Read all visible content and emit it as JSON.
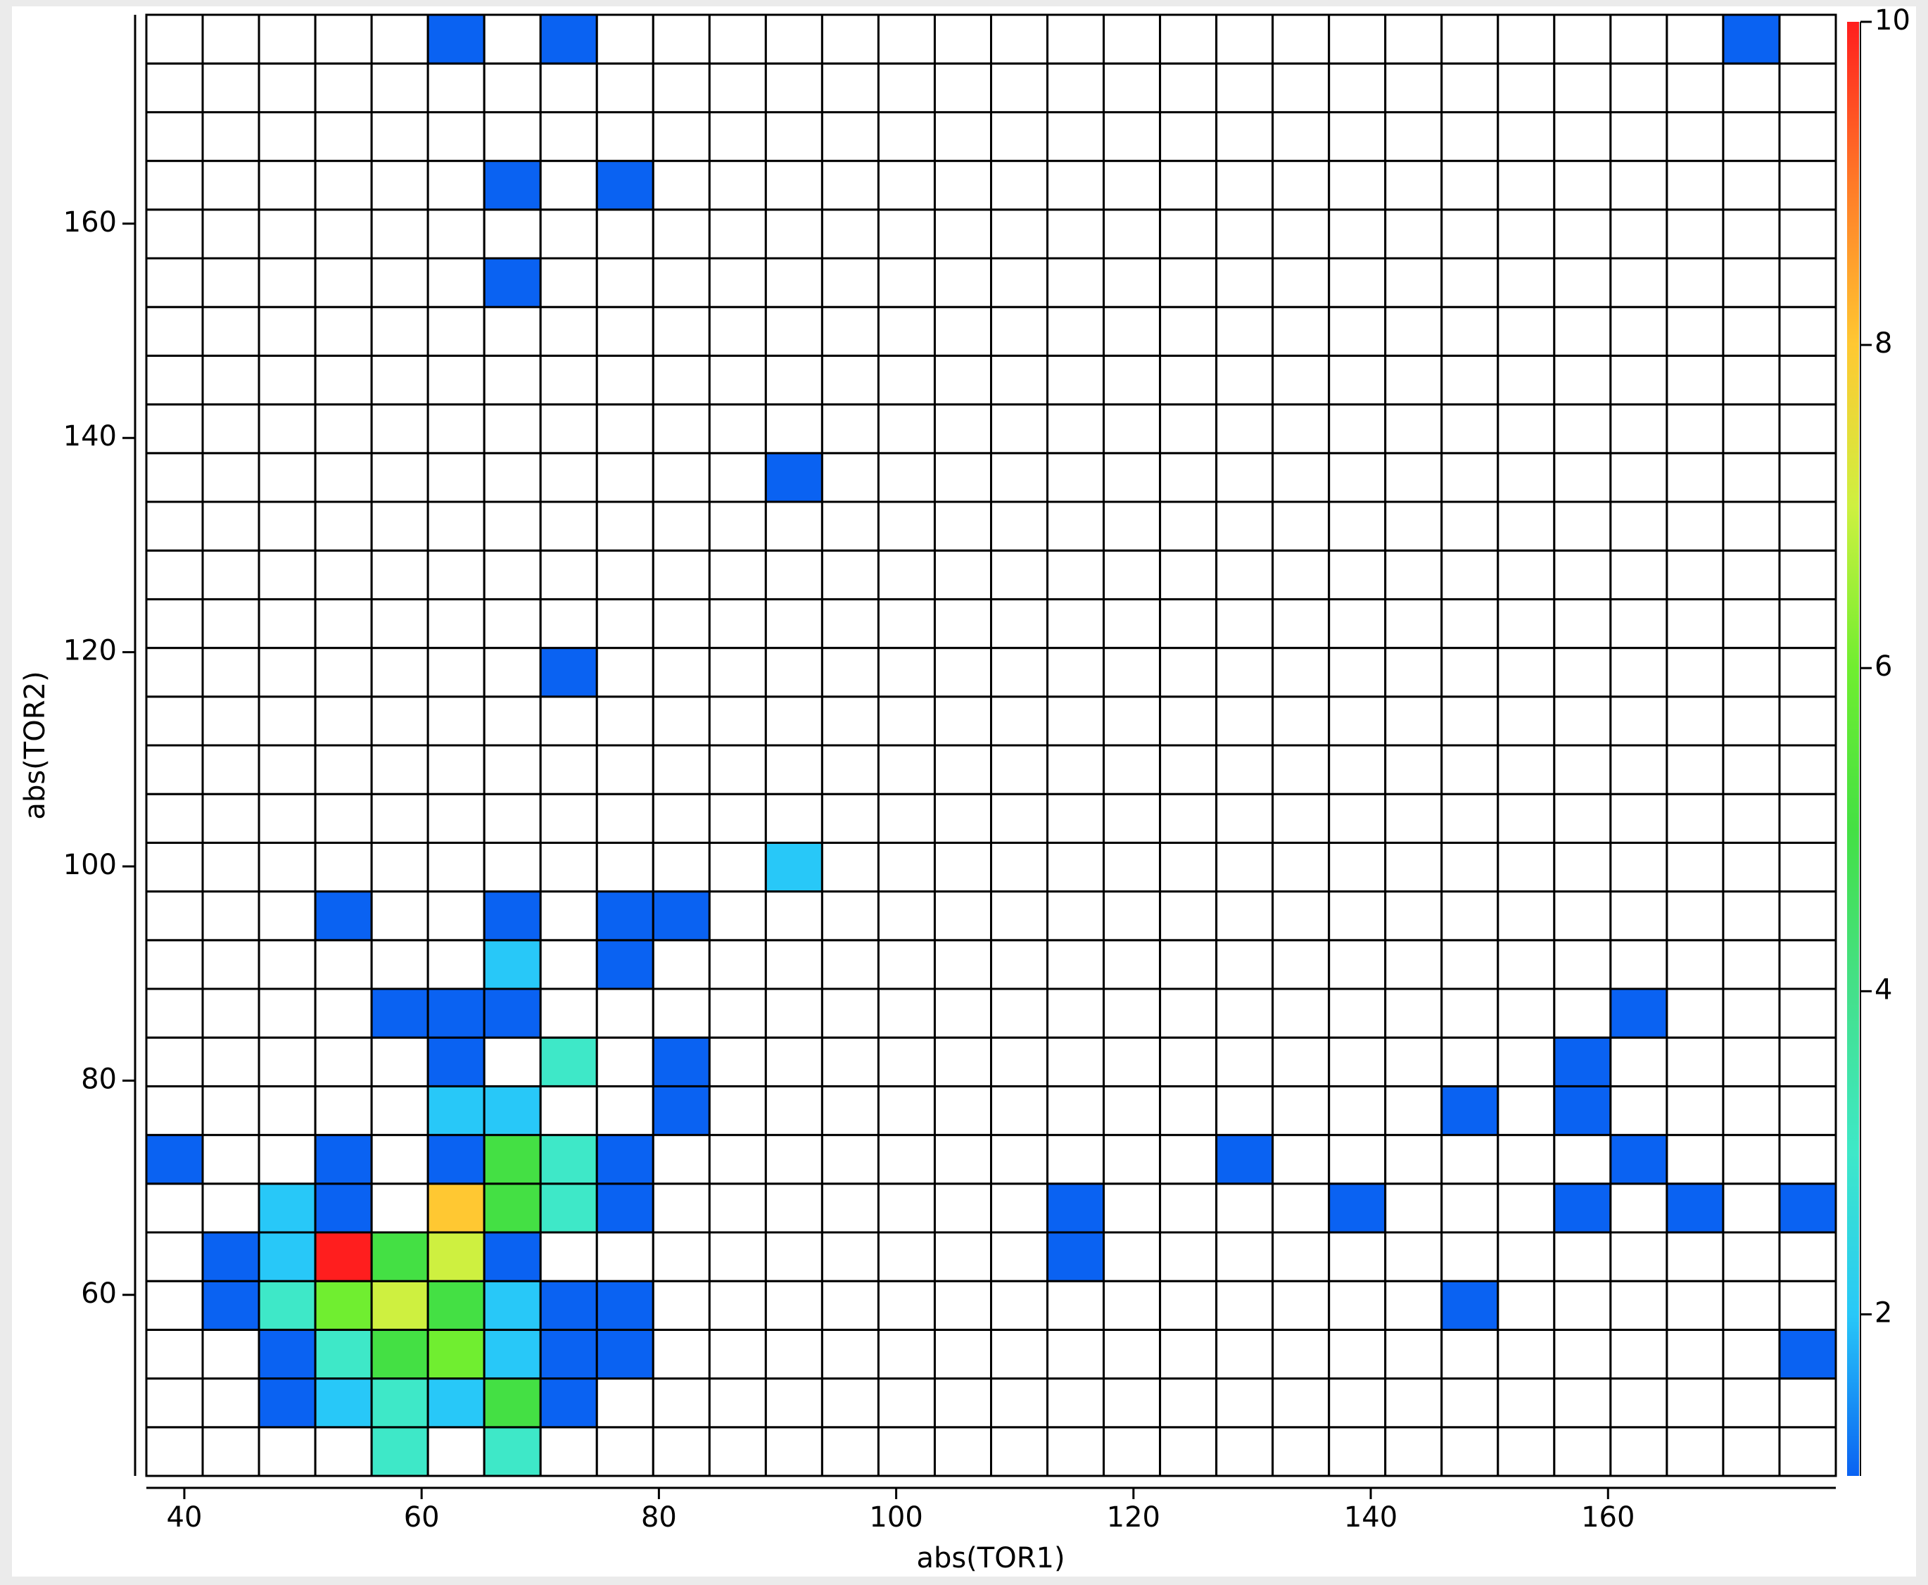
{
  "chart_data": {
    "type": "heatmap",
    "x_label": "abs(TOR1)",
    "y_label": "abs(TOR2)",
    "xlim": [
      36.8,
      179.2
    ],
    "ylim": [
      43.1,
      179.5
    ],
    "xticks": [
      40,
      60,
      80,
      100,
      120,
      140,
      160
    ],
    "yticks": [
      60,
      80,
      100,
      120,
      140,
      160
    ],
    "zlim": [
      1,
      10
    ],
    "zticks": [
      2,
      4,
      6,
      8,
      10
    ],
    "colormap": [
      "#0a62f2",
      "#28c8f8",
      "#3ee8c8",
      "#44e08a",
      "#44e044",
      "#70ee30",
      "#cef040",
      "#ffc832",
      "#ff7a28",
      "#ff1e1e"
    ],
    "z": [
      [
        null,
        null,
        null,
        null,
        3,
        null,
        3,
        null,
        null,
        null,
        null,
        null,
        null,
        null,
        null,
        null,
        null,
        null,
        null,
        null,
        null,
        null,
        null,
        null,
        null,
        null,
        null,
        null,
        null,
        null
      ],
      [
        null,
        null,
        1,
        2,
        3,
        2,
        5,
        1,
        null,
        null,
        null,
        null,
        null,
        null,
        null,
        null,
        null,
        null,
        null,
        null,
        null,
        null,
        null,
        null,
        null,
        null,
        null,
        null,
        null,
        null
      ],
      [
        null,
        null,
        1,
        3,
        5,
        6,
        2,
        1,
        1,
        null,
        null,
        null,
        null,
        null,
        null,
        null,
        null,
        null,
        null,
        null,
        null,
        null,
        null,
        null,
        null,
        null,
        null,
        null,
        null,
        1
      ],
      [
        null,
        1,
        3,
        6,
        7,
        5,
        2,
        1,
        1,
        null,
        null,
        null,
        null,
        null,
        null,
        null,
        null,
        null,
        null,
        null,
        null,
        null,
        null,
        1,
        null,
        null,
        null,
        null,
        null,
        null
      ],
      [
        null,
        1,
        2,
        10,
        5,
        7,
        1,
        null,
        null,
        null,
        null,
        null,
        null,
        null,
        null,
        null,
        1,
        null,
        null,
        null,
        null,
        null,
        null,
        null,
        null,
        null,
        null,
        null,
        null,
        null
      ],
      [
        null,
        null,
        2,
        1,
        null,
        8,
        5,
        3,
        1,
        null,
        null,
        null,
        null,
        null,
        null,
        null,
        1,
        null,
        null,
        null,
        null,
        1,
        null,
        null,
        null,
        1,
        null,
        1,
        null,
        1
      ],
      [
        1,
        null,
        null,
        1,
        null,
        1,
        5,
        3,
        1,
        null,
        null,
        null,
        null,
        null,
        null,
        null,
        null,
        null,
        null,
        1,
        null,
        null,
        null,
        null,
        null,
        null,
        1,
        null,
        null,
        null
      ],
      [
        null,
        null,
        null,
        null,
        null,
        2,
        2,
        null,
        null,
        1,
        null,
        null,
        null,
        null,
        null,
        null,
        null,
        null,
        null,
        null,
        null,
        null,
        null,
        1,
        null,
        1,
        null,
        null,
        null,
        null
      ],
      [
        null,
        null,
        null,
        null,
        null,
        1,
        null,
        3,
        null,
        1,
        null,
        null,
        null,
        null,
        null,
        null,
        null,
        null,
        null,
        null,
        null,
        null,
        null,
        null,
        null,
        1,
        null,
        null,
        null,
        null
      ],
      [
        null,
        null,
        null,
        null,
        1,
        1,
        1,
        null,
        null,
        null,
        null,
        null,
        null,
        null,
        null,
        null,
        null,
        null,
        null,
        null,
        null,
        null,
        null,
        null,
        null,
        null,
        1,
        null,
        null,
        null
      ],
      [
        null,
        null,
        null,
        null,
        null,
        null,
        2,
        null,
        1,
        null,
        null,
        null,
        null,
        null,
        null,
        null,
        null,
        null,
        null,
        null,
        null,
        null,
        null,
        null,
        null,
        null,
        null,
        null,
        null,
        null
      ],
      [
        null,
        null,
        null,
        1,
        null,
        null,
        1,
        null,
        1,
        1,
        null,
        null,
        null,
        null,
        null,
        null,
        null,
        null,
        null,
        null,
        null,
        null,
        null,
        null,
        null,
        null,
        null,
        null,
        null,
        null
      ],
      [
        null,
        null,
        null,
        null,
        null,
        null,
        null,
        null,
        null,
        null,
        null,
        2,
        null,
        null,
        null,
        null,
        null,
        null,
        null,
        null,
        null,
        null,
        null,
        null,
        null,
        null,
        null,
        null,
        null,
        null
      ],
      [
        null,
        null,
        null,
        null,
        null,
        null,
        null,
        null,
        null,
        null,
        null,
        null,
        null,
        null,
        null,
        null,
        null,
        null,
        null,
        null,
        null,
        null,
        null,
        null,
        null,
        null,
        null,
        null,
        null,
        null
      ],
      [
        null,
        null,
        null,
        null,
        null,
        null,
        null,
        null,
        null,
        null,
        null,
        null,
        null,
        null,
        null,
        null,
        null,
        null,
        null,
        null,
        null,
        null,
        null,
        null,
        null,
        null,
        null,
        null,
        null,
        null
      ],
      [
        null,
        null,
        null,
        null,
        null,
        null,
        null,
        null,
        null,
        null,
        null,
        null,
        null,
        null,
        null,
        null,
        null,
        null,
        null,
        null,
        null,
        null,
        null,
        null,
        null,
        null,
        null,
        null,
        null,
        null
      ],
      [
        null,
        null,
        null,
        null,
        null,
        null,
        null,
        1,
        null,
        null,
        null,
        null,
        null,
        null,
        null,
        null,
        null,
        null,
        null,
        null,
        null,
        null,
        null,
        null,
        null,
        null,
        null,
        null,
        null,
        null
      ],
      [
        null,
        null,
        null,
        null,
        null,
        null,
        null,
        null,
        null,
        null,
        null,
        null,
        null,
        null,
        null,
        null,
        null,
        null,
        null,
        null,
        null,
        null,
        null,
        null,
        null,
        null,
        null,
        null,
        null,
        null
      ],
      [
        null,
        null,
        null,
        null,
        null,
        null,
        null,
        null,
        null,
        null,
        null,
        null,
        null,
        null,
        null,
        null,
        null,
        null,
        null,
        null,
        null,
        null,
        null,
        null,
        null,
        null,
        null,
        null,
        null,
        null
      ],
      [
        null,
        null,
        null,
        null,
        null,
        null,
        null,
        null,
        null,
        null,
        null,
        null,
        null,
        null,
        null,
        null,
        null,
        null,
        null,
        null,
        null,
        null,
        null,
        null,
        null,
        null,
        null,
        null,
        null,
        null
      ],
      [
        null,
        null,
        null,
        null,
        null,
        null,
        null,
        null,
        null,
        null,
        null,
        1,
        null,
        null,
        null,
        null,
        null,
        null,
        null,
        null,
        null,
        null,
        null,
        null,
        null,
        null,
        null,
        null,
        null,
        null
      ],
      [
        null,
        null,
        null,
        null,
        null,
        null,
        null,
        null,
        null,
        null,
        null,
        null,
        null,
        null,
        null,
        null,
        null,
        null,
        null,
        null,
        null,
        null,
        null,
        null,
        null,
        null,
        null,
        null,
        null,
        null
      ],
      [
        null,
        null,
        null,
        null,
        null,
        null,
        null,
        null,
        null,
        null,
        null,
        null,
        null,
        null,
        null,
        null,
        null,
        null,
        null,
        null,
        null,
        null,
        null,
        null,
        null,
        null,
        null,
        null,
        null,
        null
      ],
      [
        null,
        null,
        null,
        null,
        null,
        null,
        null,
        null,
        null,
        null,
        null,
        null,
        null,
        null,
        null,
        null,
        null,
        null,
        null,
        null,
        null,
        null,
        null,
        null,
        null,
        null,
        null,
        null,
        null,
        null
      ],
      [
        null,
        null,
        null,
        null,
        null,
        null,
        1,
        null,
        null,
        null,
        null,
        null,
        null,
        null,
        null,
        null,
        null,
        null,
        null,
        null,
        null,
        null,
        null,
        null,
        null,
        null,
        null,
        null,
        null,
        null
      ],
      [
        null,
        null,
        null,
        null,
        null,
        null,
        null,
        null,
        null,
        null,
        null,
        null,
        null,
        null,
        null,
        null,
        null,
        null,
        null,
        null,
        null,
        null,
        null,
        null,
        null,
        null,
        null,
        null,
        null,
        null
      ],
      [
        null,
        null,
        null,
        null,
        null,
        null,
        1,
        null,
        1,
        null,
        null,
        null,
        null,
        null,
        null,
        null,
        null,
        null,
        null,
        null,
        null,
        null,
        null,
        null,
        null,
        null,
        null,
        null,
        null,
        null
      ],
      [
        null,
        null,
        null,
        null,
        null,
        null,
        null,
        null,
        null,
        null,
        null,
        null,
        null,
        null,
        null,
        null,
        null,
        null,
        null,
        null,
        null,
        null,
        null,
        null,
        null,
        null,
        null,
        null,
        null,
        null
      ],
      [
        null,
        null,
        null,
        null,
        null,
        null,
        null,
        null,
        null,
        null,
        null,
        null,
        null,
        null,
        null,
        null,
        null,
        null,
        null,
        null,
        null,
        null,
        null,
        null,
        null,
        null,
        null,
        null,
        null,
        null
      ],
      [
        null,
        null,
        null,
        null,
        null,
        1,
        null,
        1,
        null,
        null,
        null,
        null,
        null,
        null,
        null,
        null,
        null,
        null,
        null,
        null,
        null,
        null,
        null,
        null,
        null,
        null,
        null,
        null,
        1,
        null
      ]
    ]
  }
}
